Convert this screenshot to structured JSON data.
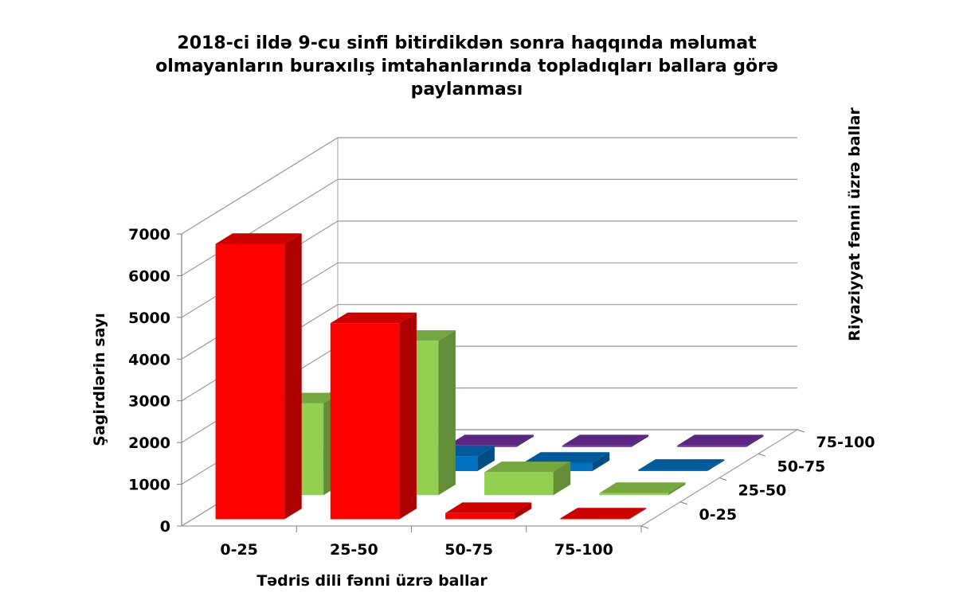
{
  "chart_data": {
    "type": "bar",
    "subtype": "3d-column",
    "title": "2018-ci ildə 9-cu sinfi bitirdikdən sonra haqqında məlumat olmayanların buraxılış imtahanlarında topladıqları ballara görə paylanması",
    "title_lines": [
      "2018-ci ildə 9-cu sinfi bitirdikdən sonra haqqında məlumat",
      "olmayanların buraxılış imtahanlarında topladıqları ballara görə",
      "paylanması"
    ],
    "xlabel": "Tədris dili fənni üzrə ballar",
    "ylabel": "Şagirdlərin sayı",
    "zlabel": "Riyaziyyat fənni üzrə ballar",
    "categories": [
      "0-25",
      "25-50",
      "50-75",
      "75-100"
    ],
    "ylim": [
      0,
      7000
    ],
    "yticks": [
      "0",
      "1000",
      "2000",
      "3000",
      "4000",
      "5000",
      "6000",
      "7000"
    ],
    "grid": true,
    "series": [
      {
        "name": "0-25",
        "color": "#ff0000",
        "values": [
          6600,
          4700,
          150,
          20
        ]
      },
      {
        "name": "25-50",
        "color": "#92d050",
        "values": [
          2200,
          3700,
          550,
          50
        ]
      },
      {
        "name": "50-75",
        "color": "#0070c0",
        "values": [
          300,
          350,
          200,
          30
        ]
      },
      {
        "name": "75-100",
        "color": "#7030a0",
        "values": [
          20,
          40,
          40,
          40
        ]
      }
    ]
  }
}
